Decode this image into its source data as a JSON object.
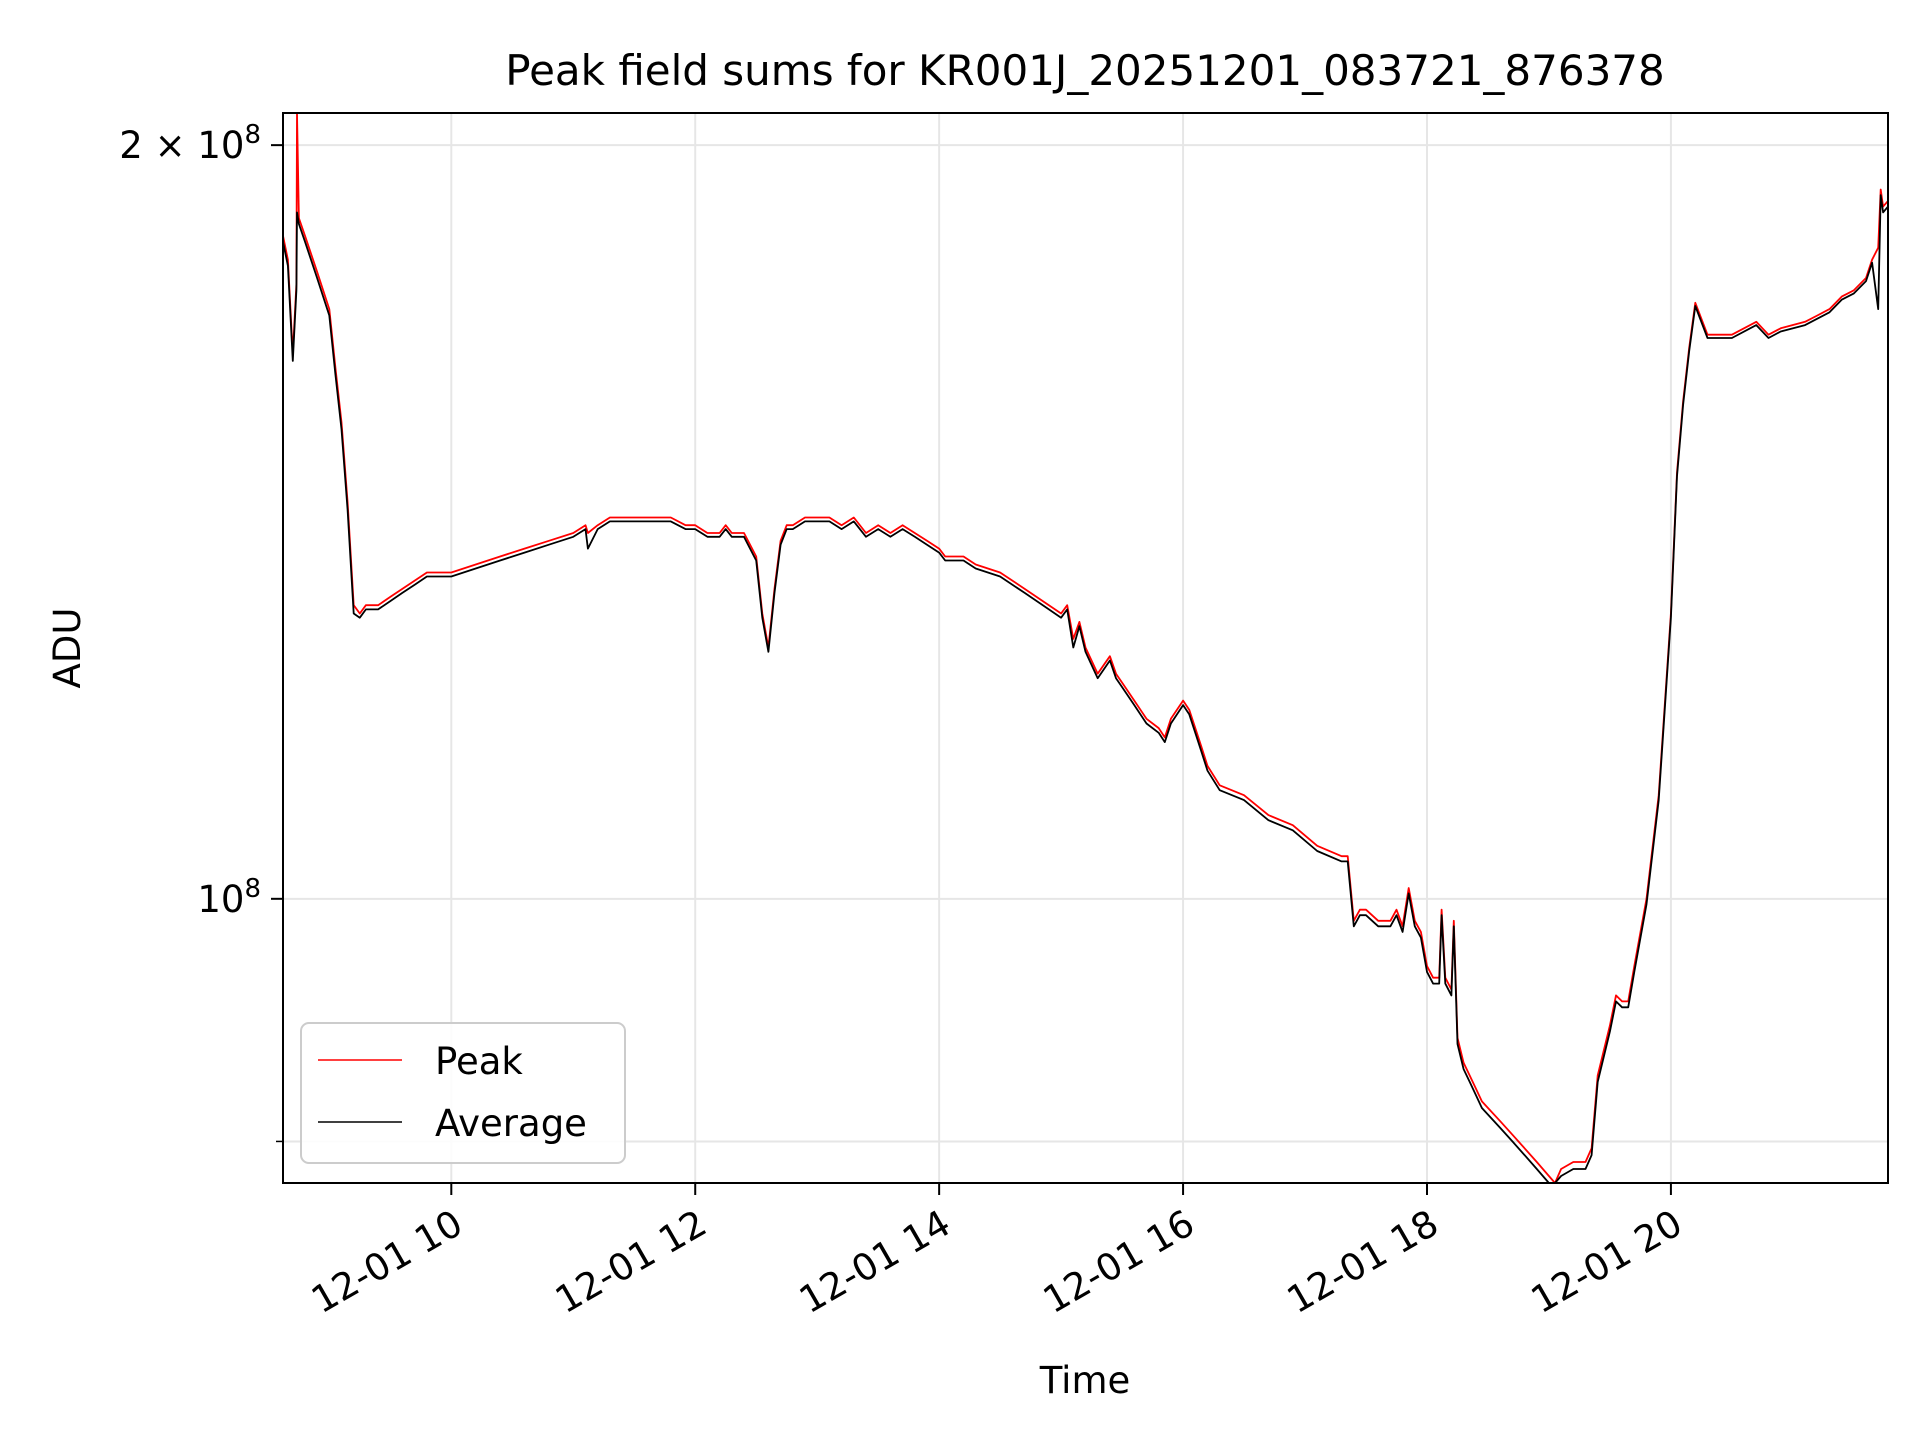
{
  "chart_data": {
    "type": "line",
    "title": "Peak field sums for KR001J_20251201_083721_876378",
    "xlabel": "Time",
    "ylabel": "ADU",
    "yscale": "log",
    "xlim": [
      8.62,
      21.78
    ],
    "ylim": [
      77000000,
      206000000
    ],
    "x_ticks": [
      {
        "value": 10,
        "label": "12-01 10"
      },
      {
        "value": 12,
        "label": "12-01 12"
      },
      {
        "value": 14,
        "label": "12-01 14"
      },
      {
        "value": 16,
        "label": "12-01 16"
      },
      {
        "value": 18,
        "label": "12-01 18"
      },
      {
        "value": 20,
        "label": "12-01 20"
      }
    ],
    "y_major_ticks": [
      {
        "value": 100000000,
        "base": "10",
        "exp": "8"
      },
      {
        "value": 200000000,
        "mantissa": "2",
        "base": "10",
        "exp": "8"
      }
    ],
    "y_minor_ticks": [
      80000000
    ],
    "grid": true,
    "legend_position": "lower-left",
    "series": [
      {
        "name": "Peak",
        "color": "#ff0000",
        "x": [
          8.62,
          8.66,
          8.7,
          8.73,
          8.735,
          8.75,
          8.8,
          8.9,
          9.0,
          9.05,
          9.1,
          9.15,
          9.2,
          9.25,
          9.3,
          9.4,
          9.5,
          9.6,
          9.7,
          9.8,
          9.9,
          10.0,
          10.2,
          10.4,
          10.6,
          10.8,
          11.0,
          11.1,
          11.12,
          11.2,
          11.3,
          11.4,
          11.6,
          11.8,
          11.92,
          11.95,
          12.0,
          12.1,
          12.2,
          12.25,
          12.3,
          12.4,
          12.5,
          12.55,
          12.6,
          12.65,
          12.7,
          12.75,
          12.8,
          12.9,
          13.0,
          13.1,
          13.2,
          13.3,
          13.4,
          13.5,
          13.6,
          13.7,
          13.8,
          13.9,
          14.0,
          14.05,
          14.1,
          14.2,
          14.3,
          14.5,
          14.7,
          14.9,
          15.0,
          15.05,
          15.1,
          15.15,
          15.2,
          15.3,
          15.4,
          15.45,
          15.5,
          15.6,
          15.7,
          15.8,
          15.85,
          15.9,
          16.0,
          16.05,
          16.1,
          16.15,
          16.2,
          16.3,
          16.5,
          16.7,
          16.9,
          17.1,
          17.3,
          17.35,
          17.4,
          17.45,
          17.5,
          17.6,
          17.7,
          17.75,
          17.8,
          17.85,
          17.9,
          17.95,
          18.0,
          18.05,
          18.1,
          18.12,
          18.15,
          18.2,
          18.22,
          18.25,
          18.3,
          18.35,
          18.4,
          18.45,
          18.5,
          18.6,
          18.7,
          18.8,
          18.9,
          19.0,
          19.05,
          19.1,
          19.2,
          19.3,
          19.35,
          19.4,
          19.5,
          19.55,
          19.6,
          19.65,
          19.7,
          19.8,
          19.9,
          20.0,
          20.05,
          20.1,
          20.15,
          20.2,
          20.3,
          20.5,
          20.7,
          20.8,
          20.9,
          21.1,
          21.2,
          21.3,
          21.4,
          21.5,
          21.6,
          21.65,
          21.7,
          21.72,
          21.74,
          21.78
        ],
        "y": [
          184000000,
          180000000,
          165000000,
          176000000,
          206000000,
          187000000,
          184000000,
          178000000,
          172000000,
          163000000,
          155000000,
          144000000,
          131000000,
          130000000,
          131000000,
          131000000,
          132000000,
          133000000,
          134000000,
          135000000,
          135000000,
          135000000,
          136000000,
          137000000,
          138000000,
          139000000,
          140000000,
          141000000,
          140000000,
          141000000,
          142000000,
          142000000,
          142000000,
          142000000,
          141000000,
          141000000,
          141000000,
          140000000,
          140000000,
          141000000,
          140000000,
          140000000,
          137000000,
          130000000,
          126000000,
          133000000,
          139000000,
          141000000,
          141000000,
          142000000,
          142000000,
          142000000,
          141000000,
          142000000,
          140000000,
          141000000,
          140000000,
          141000000,
          140000000,
          139000000,
          138000000,
          137000000,
          137000000,
          137000000,
          136000000,
          135000000,
          133000000,
          131000000,
          130000000,
          131000000,
          127000000,
          129000000,
          126000000,
          123000000,
          125000000,
          123000000,
          122000000,
          120000000,
          118000000,
          117000000,
          116000000,
          118000000,
          120000000,
          119000000,
          117000000,
          115000000,
          113000000,
          111000000,
          110000000,
          108000000,
          107000000,
          105000000,
          104000000,
          104000000,
          98000000,
          99000000,
          99000000,
          98000000,
          98000000,
          99000000,
          97500000,
          101000000,
          98000000,
          97000000,
          94000000,
          93000000,
          93000000,
          99000000,
          93000000,
          92000000,
          98000000,
          88000000,
          86000000,
          85000000,
          84000000,
          83000000,
          82500000,
          81500000,
          80500000,
          79500000,
          78500000,
          77500000,
          77000000,
          78000000,
          78500000,
          78500000,
          79500000,
          85000000,
          89000000,
          91500000,
          91000000,
          91000000,
          94000000,
          100000000,
          110000000,
          130000000,
          148000000,
          158000000,
          166000000,
          173000000,
          168000000,
          168000000,
          170000000,
          168000000,
          169000000,
          170000000,
          171000000,
          172000000,
          174000000,
          175000000,
          177000000,
          180000000,
          182000000,
          192000000,
          189000000,
          190000000
        ]
      },
      {
        "name": "Average",
        "color": "#000000",
        "x": [
          8.62,
          8.66,
          8.7,
          8.73,
          8.735,
          8.75,
          8.8,
          8.9,
          9.0,
          9.05,
          9.1,
          9.15,
          9.2,
          9.25,
          9.3,
          9.4,
          9.5,
          9.6,
          9.7,
          9.8,
          9.9,
          10.0,
          10.2,
          10.4,
          10.6,
          10.8,
          11.0,
          11.1,
          11.12,
          11.2,
          11.3,
          11.4,
          11.6,
          11.8,
          11.92,
          11.95,
          12.0,
          12.1,
          12.2,
          12.25,
          12.3,
          12.4,
          12.5,
          12.55,
          12.6,
          12.65,
          12.7,
          12.75,
          12.8,
          12.9,
          13.0,
          13.1,
          13.2,
          13.3,
          13.4,
          13.5,
          13.6,
          13.7,
          13.8,
          13.9,
          14.0,
          14.05,
          14.1,
          14.2,
          14.3,
          14.5,
          14.7,
          14.9,
          15.0,
          15.05,
          15.1,
          15.15,
          15.2,
          15.3,
          15.4,
          15.45,
          15.5,
          15.6,
          15.7,
          15.8,
          15.85,
          15.9,
          16.0,
          16.05,
          16.1,
          16.15,
          16.2,
          16.3,
          16.5,
          16.7,
          16.9,
          17.1,
          17.3,
          17.35,
          17.4,
          17.45,
          17.5,
          17.6,
          17.7,
          17.75,
          17.8,
          17.85,
          17.9,
          17.95,
          18.0,
          18.05,
          18.1,
          18.12,
          18.15,
          18.2,
          18.22,
          18.25,
          18.3,
          18.35,
          18.4,
          18.45,
          18.5,
          18.6,
          18.7,
          18.8,
          18.9,
          19.0,
          19.05,
          19.1,
          19.2,
          19.3,
          19.35,
          19.4,
          19.5,
          19.55,
          19.6,
          19.65,
          19.7,
          19.8,
          19.9,
          20.0,
          20.05,
          20.1,
          20.15,
          20.2,
          20.3,
          20.5,
          20.7,
          20.8,
          20.9,
          21.1,
          21.2,
          21.3,
          21.4,
          21.5,
          21.6,
          21.65,
          21.7,
          21.72,
          21.74,
          21.78
        ],
        "y": [
          183000000,
          179000000,
          164000000,
          175000000,
          188000000,
          186000000,
          183000000,
          177000000,
          171000000,
          162000000,
          154000000,
          143000000,
          130000000,
          129500000,
          130500000,
          130500000,
          131500000,
          132500000,
          133500000,
          134500000,
          134500000,
          134500000,
          135500000,
          136500000,
          137500000,
          138500000,
          139500000,
          140500000,
          138000000,
          140500000,
          141500000,
          141500000,
          141500000,
          141500000,
          140500000,
          140500000,
          140500000,
          139500000,
          139500000,
          140500000,
          139500000,
          139500000,
          136500000,
          129500000,
          125500000,
          132500000,
          138500000,
          140500000,
          140500000,
          141500000,
          141500000,
          141500000,
          140500000,
          141500000,
          139500000,
          140500000,
          139500000,
          140500000,
          139500000,
          138500000,
          137500000,
          136500000,
          136500000,
          136500000,
          135500000,
          134500000,
          132500000,
          130500000,
          129500000,
          130500000,
          126000000,
          128500000,
          125500000,
          122500000,
          124500000,
          122500000,
          121500000,
          119500000,
          117500000,
          116500000,
          115500000,
          117500000,
          119500000,
          118500000,
          116500000,
          114500000,
          112500000,
          110500000,
          109500000,
          107500000,
          106500000,
          104500000,
          103500000,
          103500000,
          97500000,
          98500000,
          98500000,
          97500000,
          97500000,
          98500000,
          97000000,
          100500000,
          97500000,
          96500000,
          93500000,
          92500000,
          92500000,
          98500000,
          92500000,
          91500000,
          97500000,
          87500000,
          85500000,
          84500000,
          83500000,
          82500000,
          82000000,
          81000000,
          80000000,
          79000000,
          78000000,
          77000000,
          76800000,
          77500000,
          78000000,
          78000000,
          79000000,
          84500000,
          88500000,
          91000000,
          90500000,
          90500000,
          93500000,
          99500000,
          109500000,
          129500000,
          147500000,
          157500000,
          165500000,
          172500000,
          167500000,
          167500000,
          169500000,
          167500000,
          168500000,
          169500000,
          170500000,
          171500000,
          173500000,
          174500000,
          176500000,
          179500000,
          172000000,
          191000000,
          188000000,
          189000000
        ]
      }
    ]
  }
}
